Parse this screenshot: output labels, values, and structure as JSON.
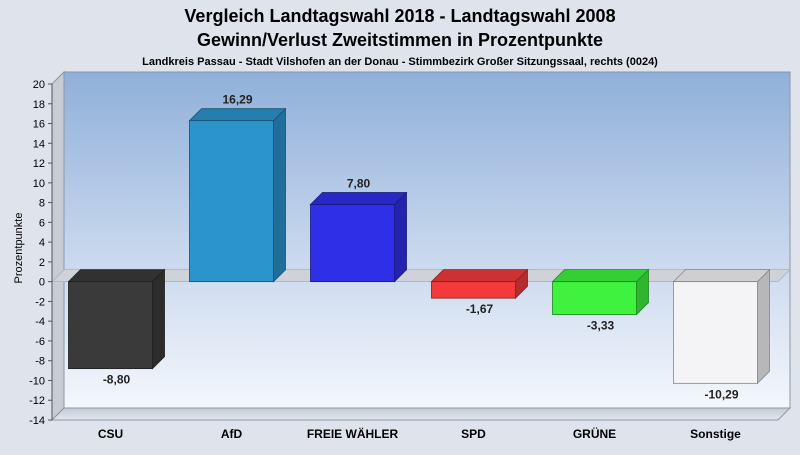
{
  "chart_data": {
    "type": "bar",
    "title": "Vergleich Landtagswahl 2018 - Landtagswahl 2008",
    "subtitle": "Gewinn/Verlust Zweitstimmen in Prozentpunkte",
    "caption": "Landkreis Passau - Stadt Vilshofen an der Donau - Stimmbezirk Großer Sitzungssaal, rechts (0024)",
    "xlabel": "",
    "ylabel": "Prozentpunkte",
    "ylim": [
      -14,
      20
    ],
    "ytick_step": 2,
    "grid": false,
    "categories": [
      "CSU",
      "AfD",
      "FREIE WÄHLER",
      "SPD",
      "GRÜNE",
      "Sonstige"
    ],
    "values": [
      -8.8,
      16.29,
      7.8,
      -1.67,
      -3.33,
      -10.29
    ],
    "value_labels": [
      "-8,80",
      "16,29",
      "7,80",
      "-1,67",
      "-3,33",
      "-10,29"
    ],
    "colors": [
      "#3a3a3a",
      "#2b94cd",
      "#2f2fe8",
      "#f23a3a",
      "#3ef23e",
      "#f4f4f6"
    ]
  }
}
